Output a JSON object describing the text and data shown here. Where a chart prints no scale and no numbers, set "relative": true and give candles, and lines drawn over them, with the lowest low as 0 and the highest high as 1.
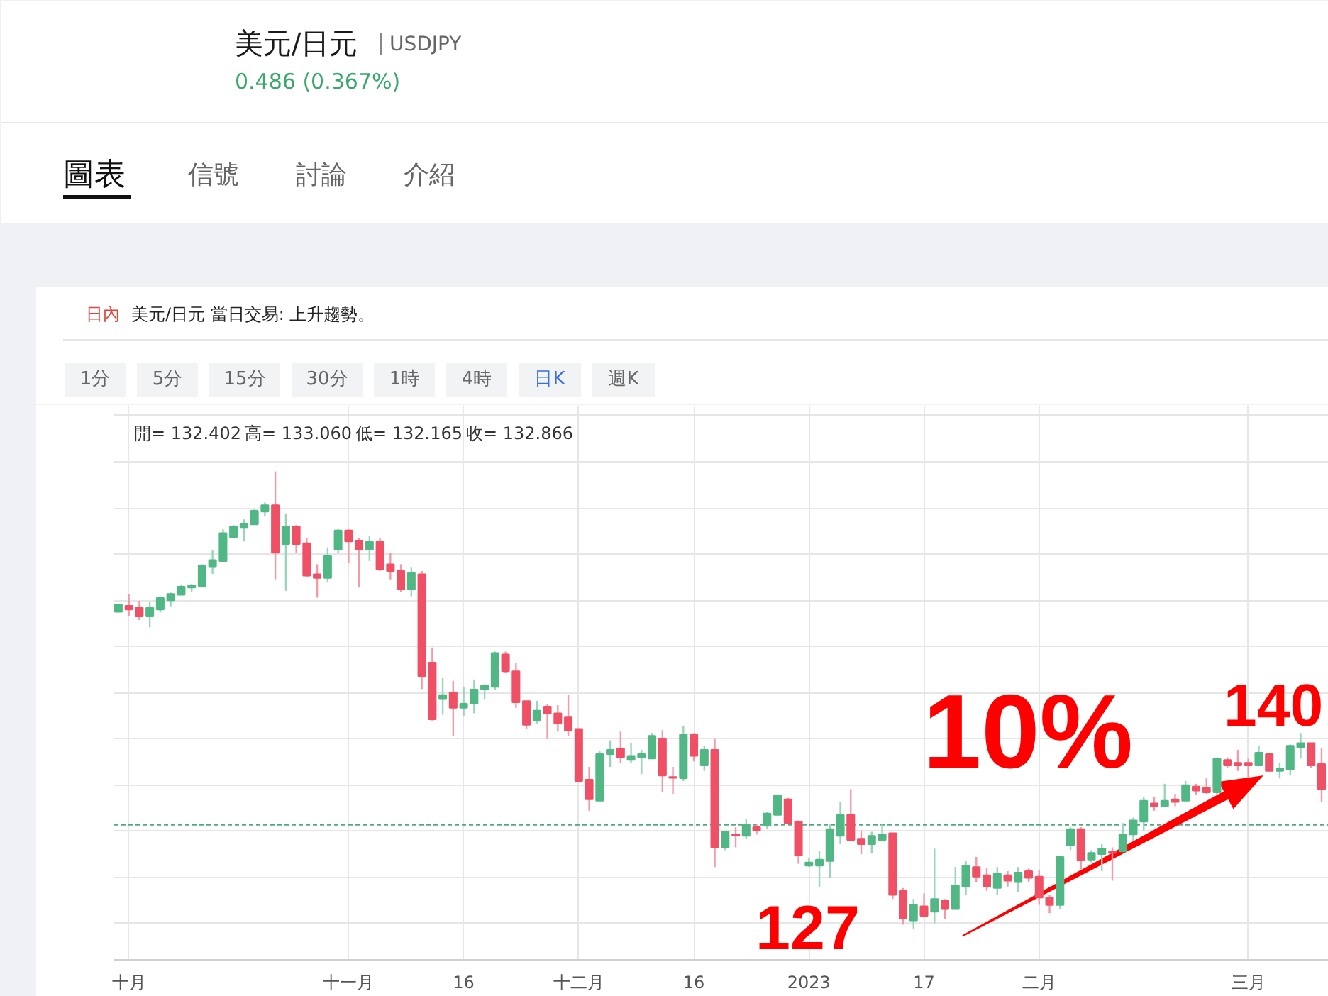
{
  "chart_data": {
    "type": "candlestick",
    "title": "美元/日元",
    "subtitle": "USDJPY",
    "relative": true,
    "grid": true,
    "annotations": [
      "0.486 (0.367%)",
      "圖表",
      "信號",
      "討論",
      "介紹",
      "日內",
      "美元/日元 當日交易: 上升趨勢。",
      "1分",
      "5分",
      "15分",
      "30分",
      "1時",
      "4時",
      "日K",
      "週K",
      "開= 132.402",
      "高= 133.060",
      "低= 132.165",
      "收= 132.866",
      "10%",
      "127",
      "140"
    ],
    "categories": [
      null,
      "十月",
      null,
      null,
      null,
      null,
      null,
      null,
      null,
      null,
      null,
      null,
      null,
      null,
      null,
      null,
      null,
      null,
      null,
      null,
      null,
      null,
      "十一月",
      null,
      null,
      null,
      null,
      null,
      null,
      null,
      null,
      null,
      null,
      "16",
      null,
      null,
      null,
      null,
      null,
      null,
      null,
      null,
      null,
      null,
      "十二月",
      null,
      null,
      null,
      null,
      null,
      null,
      null,
      null,
      null,
      null,
      "16",
      null,
      null,
      null,
      null,
      null,
      null,
      null,
      null,
      null,
      null,
      "2023",
      null,
      null,
      null,
      null,
      null,
      null,
      null,
      null,
      null,
      null,
      "17",
      null,
      null,
      null,
      null,
      null,
      null,
      null,
      null,
      null,
      null,
      "二月",
      null,
      null,
      null,
      null,
      null,
      null,
      null,
      null,
      null,
      null,
      null,
      null,
      null,
      null,
      null,
      null,
      null,
      null,
      null,
      "三月",
      null,
      null,
      null,
      null,
      null,
      null,
      null
    ],
    "ohlc": [
      [
        0.693,
        0.709,
        0.693,
        0.709
      ],
      [
        0.706,
        0.732,
        0.683,
        0.698
      ],
      [
        0.702,
        0.717,
        0.675,
        0.683
      ],
      [
        0.683,
        0.714,
        0.659,
        0.702
      ],
      [
        0.698,
        0.723,
        0.692,
        0.723
      ],
      [
        0.718,
        0.735,
        0.705,
        0.732
      ],
      [
        0.73,
        0.751,
        0.73,
        0.748
      ],
      [
        0.746,
        0.754,
        0.736,
        0.751
      ],
      [
        0.749,
        0.797,
        0.746,
        0.794
      ],
      [
        0.792,
        0.828,
        0.776,
        0.806
      ],
      [
        0.804,
        0.874,
        0.804,
        0.865
      ],
      [
        0.856,
        0.883,
        0.856,
        0.88
      ],
      [
        0.878,
        0.895,
        0.847,
        0.886
      ],
      [
        0.884,
        0.917,
        0.884,
        0.914
      ],
      [
        0.912,
        0.932,
        0.902,
        0.926
      ],
      [
        0.926,
        1,
        0.764,
        0.822
      ],
      [
        0.841,
        0.908,
        0.739,
        0.88
      ],
      [
        0.88,
        0.883,
        0.822,
        0.841
      ],
      [
        0.843,
        0.855,
        0.769,
        0.772
      ],
      [
        0.775,
        0.797,
        0.724,
        0.767
      ],
      [
        0.767,
        0.834,
        0.757,
        0.815
      ],
      [
        0.829,
        0.875,
        0.822,
        0.871
      ],
      [
        0.871,
        0.874,
        0.8,
        0.847
      ],
      [
        0.849,
        0.855,
        0.746,
        0.829
      ],
      [
        0.829,
        0.858,
        0.804,
        0.846
      ],
      [
        0.846,
        0.855,
        0.782,
        0.786
      ],
      [
        0.797,
        0.822,
        0.764,
        0.782
      ],
      [
        0.782,
        0.797,
        0.736,
        0.742
      ],
      [
        0.742,
        0.791,
        0.727,
        0.778
      ],
      [
        0.775,
        0.782,
        0.524,
        0.552
      ],
      [
        0.582,
        0.615,
        0.455,
        0.458
      ],
      [
        0.502,
        0.548,
        0.468,
        0.511
      ],
      [
        0.517,
        0.542,
        0.422,
        0.483
      ],
      [
        0.483,
        0.529,
        0.465,
        0.492
      ],
      [
        0.492,
        0.545,
        0.471,
        0.523
      ],
      [
        0.523,
        0.535,
        0.502,
        0.532
      ],
      [
        0.529,
        0.606,
        0.523,
        0.603
      ],
      [
        0.6,
        0.606,
        0.56,
        0.563
      ],
      [
        0.563,
        0.582,
        0.483,
        0.495
      ],
      [
        0.498,
        0.498,
        0.437,
        0.446
      ],
      [
        0.455,
        0.498,
        0.449,
        0.477
      ],
      [
        0.486,
        0.492,
        0.415,
        0.471
      ],
      [
        0.471,
        0.489,
        0.431,
        0.449
      ],
      [
        0.462,
        0.511,
        0.422,
        0.434
      ],
      [
        0.437,
        0.437,
        0.323,
        0.323
      ],
      [
        0.326,
        0.354,
        0.258,
        0.283
      ],
      [
        0.28,
        0.388,
        0.28,
        0.382
      ],
      [
        0.382,
        0.412,
        0.354,
        0.391
      ],
      [
        0.394,
        0.431,
        0.363,
        0.375
      ],
      [
        0.369,
        0.406,
        0.363,
        0.378
      ],
      [
        0.375,
        0.391,
        0.338,
        0.382
      ],
      [
        0.372,
        0.428,
        0.372,
        0.422
      ],
      [
        0.415,
        0.434,
        0.298,
        0.335
      ],
      [
        0.332,
        0.354,
        0.295,
        0.33
      ],
      [
        0.329,
        0.443,
        0.323,
        0.425
      ],
      [
        0.425,
        0.428,
        0.366,
        0.378
      ],
      [
        0.357,
        0.4,
        0.345,
        0.391
      ],
      [
        0.391,
        0.415,
        0.135,
        0.178
      ],
      [
        0.178,
        0.212,
        0.172,
        0.212
      ],
      [
        0.206,
        0.222,
        0.178,
        0.204
      ],
      [
        0.203,
        0.24,
        0.197,
        0.228
      ],
      [
        0.222,
        0.228,
        0.206,
        0.215
      ],
      [
        0.225,
        0.255,
        0.218,
        0.252
      ],
      [
        0.249,
        0.292,
        0.249,
        0.292
      ],
      [
        0.283,
        0.286,
        0.228,
        0.231
      ],
      [
        0.234,
        0.237,
        0.142,
        0.16
      ],
      [
        0.138,
        0.154,
        0.135,
        0.145
      ],
      [
        0.138,
        0.169,
        0.092,
        0.151
      ],
      [
        0.148,
        0.228,
        0.111,
        0.218
      ],
      [
        0.203,
        0.277,
        0.185,
        0.249
      ],
      [
        0.249,
        0.305,
        0.194,
        0.194
      ],
      [
        0.197,
        0.215,
        0.163,
        0.185
      ],
      [
        0.185,
        0.212,
        0.166,
        0.203
      ],
      [
        0.194,
        0.228,
        0.194,
        0.206
      ],
      [
        0.209,
        0.209,
        0.065,
        0.074
      ],
      [
        0.083,
        0.089,
        0.009,
        0.022
      ],
      [
        0.018,
        0.065,
        0,
        0.052
      ],
      [
        0.049,
        0.077,
        0.028,
        0.028
      ],
      [
        0.037,
        0.175,
        0.012,
        0.065
      ],
      [
        0.062,
        0.065,
        0.022,
        0.043
      ],
      [
        0.043,
        0.135,
        0.043,
        0.095
      ],
      [
        0.092,
        0.148,
        0.074,
        0.138
      ],
      [
        0.135,
        0.157,
        0.102,
        0.114
      ],
      [
        0.117,
        0.132,
        0.083,
        0.092
      ],
      [
        0.089,
        0.135,
        0.074,
        0.12
      ],
      [
        0.117,
        0.126,
        0.092,
        0.105
      ],
      [
        0.102,
        0.135,
        0.08,
        0.123
      ],
      [
        0.126,
        0.132,
        0.102,
        0.111
      ],
      [
        0.114,
        0.129,
        0.052,
        0.068
      ],
      [
        0.068,
        0.074,
        0.034,
        0.052
      ],
      [
        0.052,
        0.16,
        0.043,
        0.157
      ],
      [
        0.182,
        0.222,
        0.172,
        0.218
      ],
      [
        0.218,
        0.222,
        0.13,
        0.149
      ],
      [
        0.151,
        0.172,
        0.145,
        0.166
      ],
      [
        0.163,
        0.185,
        0.126,
        0.175
      ],
      [
        0.168,
        0.178,
        0.105,
        0.166
      ],
      [
        0.169,
        0.231,
        0.169,
        0.206
      ],
      [
        0.206,
        0.243,
        0.191,
        0.237
      ],
      [
        0.234,
        0.289,
        0.215,
        0.28
      ],
      [
        0.274,
        0.289,
        0.258,
        0.268
      ],
      [
        0.268,
        0.317,
        0.268,
        0.28
      ],
      [
        0.283,
        0.295,
        0.268,
        0.277
      ],
      [
        0.28,
        0.323,
        0.28,
        0.314
      ],
      [
        0.311,
        0.317,
        0.292,
        0.302
      ],
      [
        0.308,
        0.329,
        0.295,
        0.298
      ],
      [
        0.298,
        0.375,
        0.292,
        0.372
      ],
      [
        0.369,
        0.375,
        0.351,
        0.357
      ],
      [
        0.363,
        0.391,
        0.345,
        0.357
      ],
      [
        0.363,
        0.372,
        0.329,
        0.357
      ],
      [
        0.357,
        0.4,
        0.357,
        0.385
      ],
      [
        0.382,
        0.385,
        0.345,
        0.345
      ],
      [
        0.345,
        0.363,
        0.329,
        0.351
      ],
      [
        0.348,
        0.403,
        0.335,
        0.4
      ],
      [
        0.397,
        0.428,
        0.372,
        0.406
      ],
      [
        0.406,
        0.406,
        0.351,
        0.357
      ],
      [
        0.36,
        0.394,
        0.277,
        0.305
      ]
    ],
    "colors": [
      "#50b785",
      "#ef5065",
      "#ef5065",
      "#50b785",
      "#50b785",
      "#50b785",
      "#50b785",
      "#50b785",
      "#50b785",
      "#50b785",
      "#50b785",
      "#50b785",
      "#50b785",
      "#50b785",
      "#50b785",
      "#ef5065",
      "#50b785",
      "#ef5065",
      "#ef5065",
      "#ef5065",
      "#50b785",
      "#50b785",
      "#ef5065",
      "#ef5065",
      "#50b785",
      "#ef5065",
      "#ef5065",
      "#ef5065",
      "#50b785",
      "#ef5065",
      "#ef5065",
      "#50b785",
      "#ef5065",
      "#50b785",
      "#50b785",
      "#50b785",
      "#50b785",
      "#ef5065",
      "#ef5065",
      "#ef5065",
      "#50b785",
      "#ef5065",
      "#ef5065",
      "#ef5065",
      "#ef5065",
      "#ef5065",
      "#50b785",
      "#50b785",
      "#ef5065",
      "#50b785",
      "#50b785",
      "#50b785",
      "#ef5065",
      "#ef5065",
      "#50b785",
      "#ef5065",
      "#50b785",
      "#ef5065",
      "#50b785",
      "#ef5065",
      "#50b785",
      "#ef5065",
      "#50b785",
      "#50b785",
      "#ef5065",
      "#ef5065",
      "#50b785",
      "#50b785",
      "#50b785",
      "#50b785",
      "#ef5065",
      "#ef5065",
      "#50b785",
      "#50b785",
      "#ef5065",
      "#ef5065",
      "#50b785",
      "#ef5065",
      "#50b785",
      "#ef5065",
      "#50b785",
      "#50b785",
      "#ef5065",
      "#ef5065",
      "#50b785",
      "#ef5065",
      "#50b785",
      "#ef5065",
      "#ef5065",
      "#ef5065",
      "#50b785",
      "#50b785",
      "#ef5065",
      "#50b785",
      "#50b785",
      "#ef5065",
      "#50b785",
      "#50b785",
      "#50b785",
      "#ef5065",
      "#50b785",
      "#ef5065",
      "#50b785",
      "#ef5065",
      "#ef5065",
      "#50b785",
      "#ef5065",
      "#ef5065",
      "#ef5065",
      "#50b785",
      "#ef5065",
      "#50b785",
      "#50b785",
      "#50b785",
      "#ef5065",
      "#ef5065"
    ],
    "ref_lines": [
      {
        "axis": "y",
        "value": 0.227,
        "color": "#52a97e",
        "line_style": "dashed"
      }
    ]
  }
}
